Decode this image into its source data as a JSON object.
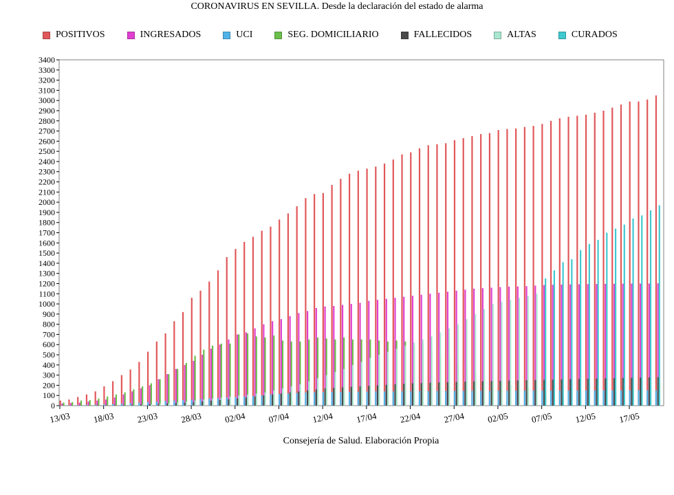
{
  "chart_data": {
    "type": "bar",
    "title": "CORONAVIRUS EN SEVILLA. Desde la declaración del estado de alarma",
    "footer": "Consejería de Salud. Elaboración Propia",
    "xlabel": "",
    "ylabel": "",
    "ylim": [
      0,
      3400
    ],
    "yticks": [
      0,
      100,
      200,
      300,
      400,
      500,
      600,
      700,
      800,
      900,
      1000,
      1100,
      1200,
      1300,
      1400,
      1500,
      1600,
      1700,
      1800,
      1900,
      2000,
      2100,
      2200,
      2300,
      2400,
      2500,
      2600,
      2700,
      2800,
      2900,
      3000,
      3100,
      3200,
      3300,
      3400
    ],
    "xtick_labels": [
      {
        "index": 0,
        "label": "13/03"
      },
      {
        "index": 5,
        "label": "18/03"
      },
      {
        "index": 10,
        "label": "23/03"
      },
      {
        "index": 15,
        "label": "28/03"
      },
      {
        "index": 20,
        "label": "02/04"
      },
      {
        "index": 25,
        "label": "07/04"
      },
      {
        "index": 30,
        "label": "12/04"
      },
      {
        "index": 35,
        "label": "17/04"
      },
      {
        "index": 40,
        "label": "22/04"
      },
      {
        "index": 45,
        "label": "27/04"
      },
      {
        "index": 50,
        "label": "02/05"
      },
      {
        "index": 55,
        "label": "07/05"
      },
      {
        "index": 60,
        "label": "12/05"
      },
      {
        "index": 65,
        "label": "17/05"
      }
    ],
    "grid": false,
    "legend_position": "top",
    "series": [
      {
        "name": "POSITIVOS",
        "color": "#e15759",
        "values": [
          50,
          60,
          85,
          110,
          140,
          190,
          240,
          300,
          355,
          430,
          530,
          630,
          710,
          830,
          920,
          1060,
          1130,
          1220,
          1330,
          1460,
          1540,
          1610,
          1660,
          1720,
          1760,
          1830,
          1890,
          1960,
          2040,
          2080,
          2090,
          2170,
          2230,
          2280,
          2310,
          2330,
          2350,
          2380,
          2420,
          2470,
          2490,
          2530,
          2560,
          2570,
          2580,
          2610,
          2630,
          2650,
          2670,
          2680,
          2710,
          2720,
          2725,
          2740,
          2750,
          2770,
          2800,
          2825,
          2840,
          2850,
          2860,
          2880,
          2900,
          2930,
          2960,
          2990,
          2990,
          3010,
          3050
        ]
      },
      {
        "name": "INGRESADOS",
        "color": "#e040d0",
        "values": [
          20,
          25,
          30,
          40,
          50,
          60,
          80,
          110,
          140,
          170,
          200,
          260,
          310,
          360,
          400,
          440,
          500,
          560,
          600,
          650,
          700,
          720,
          760,
          800,
          830,
          850,
          880,
          910,
          930,
          960,
          975,
          980,
          990,
          1000,
          1010,
          1030,
          1040,
          1050,
          1060,
          1070,
          1080,
          1090,
          1100,
          1110,
          1120,
          1130,
          1140,
          1150,
          1155,
          1160,
          1165,
          1170,
          1172,
          1175,
          1180,
          1185,
          1188,
          1190,
          1192,
          1193,
          1195,
          1196,
          1197,
          1198,
          1199,
          1200,
          1200,
          1200,
          1202
        ]
      },
      {
        "name": "UCI",
        "color": "#4fb3e8",
        "values": [
          2,
          3,
          5,
          8,
          10,
          12,
          15,
          20,
          25,
          30,
          35,
          40,
          45,
          50,
          55,
          60,
          65,
          70,
          75,
          80,
          85,
          90,
          95,
          100,
          110,
          115,
          120,
          125,
          128,
          130,
          132,
          134,
          135,
          136,
          137,
          138,
          139,
          140,
          140,
          141,
          141,
          142,
          142,
          143,
          143,
          144,
          144,
          145,
          145,
          145,
          146,
          146,
          146,
          147,
          147,
          147,
          148,
          148,
          148,
          149,
          149,
          149,
          150,
          150,
          150,
          150,
          151,
          151,
          151
        ]
      },
      {
        "name": "SEG. DOMICILIARIO",
        "color": "#6abf4b",
        "values": [
          30,
          35,
          50,
          55,
          70,
          90,
          110,
          130,
          160,
          190,
          220,
          260,
          310,
          360,
          420,
          490,
          550,
          590,
          610,
          610,
          700,
          710,
          680,
          670,
          690,
          640,
          630,
          630,
          650,
          670,
          660,
          650,
          670,
          650,
          650,
          650,
          640,
          630,
          640,
          630,
          590,
          600,
          540,
          500,
          480,
          420,
          390,
          330,
          290,
          250,
          230,
          200,
          190,
          170,
          140,
          110,
          80,
          60
        ]
      },
      {
        "name": "FALLECIDOS",
        "color": "#4a4a4a",
        "values": [
          1,
          1,
          2,
          2,
          3,
          4,
          5,
          7,
          9,
          12,
          15,
          18,
          22,
          26,
          30,
          35,
          40,
          48,
          55,
          62,
          70,
          80,
          90,
          100,
          110,
          120,
          130,
          140,
          150,
          160,
          170,
          175,
          180,
          185,
          190,
          195,
          200,
          205,
          210,
          215,
          220,
          222,
          225,
          228,
          230,
          232,
          235,
          238,
          240,
          242,
          244,
          246,
          248,
          250,
          252,
          254,
          256,
          258,
          260,
          262,
          264,
          266,
          268,
          270,
          272,
          274,
          276,
          278,
          280
        ]
      },
      {
        "name": "ALTAS",
        "color": "#a8e6d0",
        "values": [
          0,
          0,
          0,
          0,
          0,
          0,
          0,
          0,
          5,
          10,
          15,
          20,
          25,
          30,
          40,
          50,
          60,
          70,
          80,
          90,
          100,
          110,
          120,
          130,
          150,
          170,
          190,
          210,
          240,
          270,
          300,
          330,
          360,
          400,
          430,
          470,
          500,
          530,
          560,
          590,
          620,
          650,
          680,
          720,
          760,
          800,
          850,
          900,
          950,
          1000,
          1020,
          1040,
          1060,
          1080,
          1100,
          60,
          70,
          80,
          90,
          100,
          110,
          120,
          130,
          140,
          150,
          160,
          170,
          180,
          190
        ]
      },
      {
        "name": "CURADOS",
        "color": "#3fc8cf",
        "values": [
          0,
          0,
          0,
          0,
          0,
          0,
          0,
          0,
          0,
          0,
          0,
          0,
          0,
          0,
          0,
          0,
          0,
          0,
          0,
          0,
          0,
          0,
          0,
          0,
          0,
          0,
          0,
          0,
          0,
          0,
          0,
          0,
          0,
          0,
          0,
          0,
          0,
          0,
          0,
          0,
          0,
          0,
          0,
          0,
          0,
          0,
          0,
          0,
          0,
          0,
          0,
          0,
          0,
          0,
          0,
          1250,
          1330,
          1410,
          1440,
          1530,
          1590,
          1630,
          1700,
          1740,
          1780,
          1840,
          1870,
          1920,
          1970
        ]
      }
    ]
  }
}
